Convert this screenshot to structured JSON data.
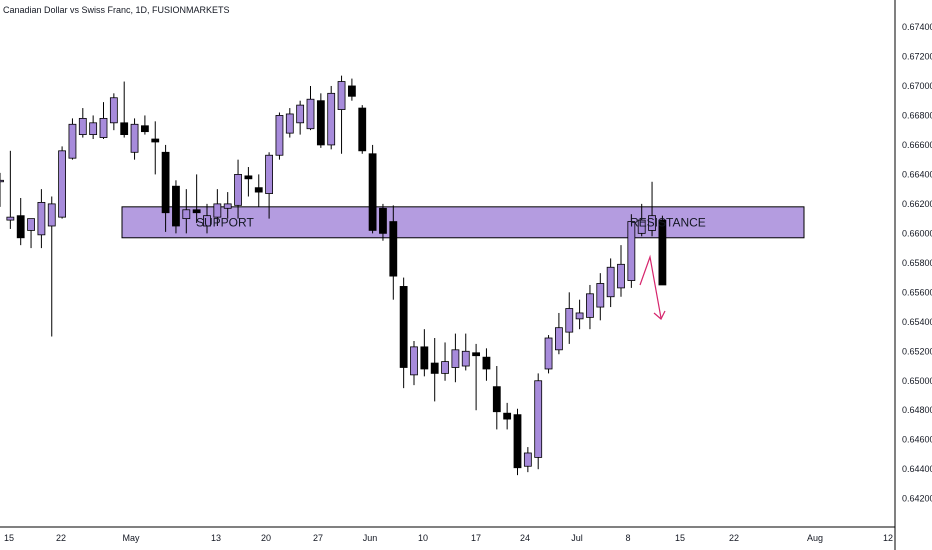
{
  "title": "Canadian Dollar vs Swiss Franc, 1D, FUSIONMARKETS",
  "colors": {
    "bull_fill": "#a78bdb",
    "bear_fill": "#000000",
    "wick": "#000000",
    "zone_fill": "#a78bdb",
    "zone_border": "#000000",
    "arrow": "#d6266d",
    "axis_text": "#131722"
  },
  "chart_data": {
    "type": "candlestick",
    "title": "Canadian Dollar vs Swiss Franc, 1D, FUSIONMARKETS",
    "ylim": [
      0.6406,
      0.6752
    ],
    "y_ticks": [
      "0.67400",
      "0.67200",
      "0.67000",
      "0.66800",
      "0.66600",
      "0.66400",
      "0.66200",
      "0.66000",
      "0.65800",
      "0.65600",
      "0.65400",
      "0.65200",
      "0.65000",
      "0.64800",
      "0.64600",
      "0.64400",
      "0.64200"
    ],
    "x_ticks": [
      "15",
      "22",
      "May",
      "13",
      "20",
      "27",
      "Jun",
      "10",
      "17",
      "24",
      "Jul",
      "8",
      "15",
      "22",
      "Aug",
      "12"
    ],
    "grid": false,
    "candles": [
      {
        "date": "Apr 11",
        "open": 0.6635,
        "high": 0.6641,
        "low": 0.6618,
        "close": 0.6636
      },
      {
        "date": "Apr 12",
        "open": 0.6609,
        "high": 0.6656,
        "low": 0.6603,
        "close": 0.6611
      },
      {
        "date": "Apr 15",
        "open": 0.6612,
        "high": 0.6624,
        "low": 0.6592,
        "close": 0.6597
      },
      {
        "date": "Apr 16",
        "open": 0.6602,
        "high": 0.6609,
        "low": 0.659,
        "close": 0.661
      },
      {
        "date": "Apr 17",
        "open": 0.6599,
        "high": 0.663,
        "low": 0.659,
        "close": 0.6621
      },
      {
        "date": "Apr 18",
        "open": 0.6605,
        "high": 0.6625,
        "low": 0.653,
        "close": 0.662
      },
      {
        "date": "Apr 19",
        "open": 0.6611,
        "high": 0.6659,
        "low": 0.661,
        "close": 0.6656
      },
      {
        "date": "Apr 22",
        "open": 0.6651,
        "high": 0.6678,
        "low": 0.665,
        "close": 0.6674
      },
      {
        "date": "Apr 23",
        "open": 0.6667,
        "high": 0.6685,
        "low": 0.6665,
        "close": 0.6678
      },
      {
        "date": "Apr 24",
        "open": 0.6667,
        "high": 0.668,
        "low": 0.6664,
        "close": 0.6675
      },
      {
        "date": "Apr 25",
        "open": 0.6665,
        "high": 0.6689,
        "low": 0.6664,
        "close": 0.6678
      },
      {
        "date": "Apr 26",
        "open": 0.6675,
        "high": 0.6695,
        "low": 0.667,
        "close": 0.6692
      },
      {
        "date": "Apr 29",
        "open": 0.6675,
        "high": 0.6703,
        "low": 0.6665,
        "close": 0.6667
      },
      {
        "date": "Apr 30",
        "open": 0.6655,
        "high": 0.6678,
        "low": 0.665,
        "close": 0.6674
      },
      {
        "date": "May 1",
        "open": 0.6673,
        "high": 0.668,
        "low": 0.6667,
        "close": 0.6669
      },
      {
        "date": "May 2",
        "open": 0.6664,
        "high": 0.6676,
        "low": 0.664,
        "close": 0.6662
      },
      {
        "date": "May 3",
        "open": 0.6655,
        "high": 0.666,
        "low": 0.6601,
        "close": 0.6614
      },
      {
        "date": "May 6",
        "open": 0.6632,
        "high": 0.6636,
        "low": 0.66,
        "close": 0.6605
      },
      {
        "date": "May 7",
        "open": 0.661,
        "high": 0.663,
        "low": 0.66,
        "close": 0.6616
      },
      {
        "date": "May 8",
        "open": 0.6616,
        "high": 0.664,
        "low": 0.6607,
        "close": 0.6614
      },
      {
        "date": "May 9",
        "open": 0.6605,
        "high": 0.662,
        "low": 0.66,
        "close": 0.6612
      },
      {
        "date": "May 10",
        "open": 0.6611,
        "high": 0.663,
        "low": 0.6605,
        "close": 0.662
      },
      {
        "date": "May 13",
        "open": 0.6617,
        "high": 0.6628,
        "low": 0.661,
        "close": 0.662
      },
      {
        "date": "May 14",
        "open": 0.6619,
        "high": 0.665,
        "low": 0.661,
        "close": 0.664
      },
      {
        "date": "May 15",
        "open": 0.6639,
        "high": 0.6645,
        "low": 0.6625,
        "close": 0.6637
      },
      {
        "date": "May 16",
        "open": 0.6631,
        "high": 0.664,
        "low": 0.6618,
        "close": 0.6628
      },
      {
        "date": "May 17",
        "open": 0.6627,
        "high": 0.6655,
        "low": 0.661,
        "close": 0.6653
      },
      {
        "date": "May 20",
        "open": 0.6653,
        "high": 0.6682,
        "low": 0.665,
        "close": 0.668
      },
      {
        "date": "May 21",
        "open": 0.6668,
        "high": 0.6685,
        "low": 0.6665,
        "close": 0.6681
      },
      {
        "date": "May 22",
        "open": 0.6675,
        "high": 0.669,
        "low": 0.6667,
        "close": 0.6687
      },
      {
        "date": "May 23",
        "open": 0.6671,
        "high": 0.67,
        "low": 0.667,
        "close": 0.6691
      },
      {
        "date": "May 24",
        "open": 0.669,
        "high": 0.6695,
        "low": 0.6658,
        "close": 0.666
      },
      {
        "date": "May 27",
        "open": 0.666,
        "high": 0.67,
        "low": 0.6657,
        "close": 0.6695
      },
      {
        "date": "May 28",
        "open": 0.6684,
        "high": 0.6707,
        "low": 0.6654,
        "close": 0.6703
      },
      {
        "date": "May 29",
        "open": 0.67,
        "high": 0.6705,
        "low": 0.669,
        "close": 0.6693
      },
      {
        "date": "May 30",
        "open": 0.6685,
        "high": 0.6687,
        "low": 0.6654,
        "close": 0.6656
      },
      {
        "date": "May 31",
        "open": 0.6654,
        "high": 0.666,
        "low": 0.66,
        "close": 0.6602
      },
      {
        "date": "Jun 3",
        "open": 0.6617,
        "high": 0.662,
        "low": 0.6595,
        "close": 0.66
      },
      {
        "date": "Jun 4",
        "open": 0.6608,
        "high": 0.6619,
        "low": 0.6555,
        "close": 0.6571
      },
      {
        "date": "Jun 5",
        "open": 0.6564,
        "high": 0.657,
        "low": 0.6495,
        "close": 0.6509
      },
      {
        "date": "Jun 6",
        "open": 0.6504,
        "high": 0.6527,
        "low": 0.6497,
        "close": 0.6523
      },
      {
        "date": "Jun 7",
        "open": 0.6523,
        "high": 0.6535,
        "low": 0.6503,
        "close": 0.6508
      },
      {
        "date": "Jun 10",
        "open": 0.6512,
        "high": 0.6529,
        "low": 0.6486,
        "close": 0.6505
      },
      {
        "date": "Jun 11",
        "open": 0.6505,
        "high": 0.6526,
        "low": 0.65,
        "close": 0.6513
      },
      {
        "date": "Jun 12",
        "open": 0.6509,
        "high": 0.6532,
        "low": 0.6499,
        "close": 0.6521
      },
      {
        "date": "Jun 13",
        "open": 0.651,
        "high": 0.6532,
        "low": 0.6507,
        "close": 0.652
      },
      {
        "date": "Jun 14",
        "open": 0.6519,
        "high": 0.6525,
        "low": 0.648,
        "close": 0.6517
      },
      {
        "date": "Jun 17",
        "open": 0.6516,
        "high": 0.6522,
        "low": 0.65,
        "close": 0.6508
      },
      {
        "date": "Jun 18",
        "open": 0.6496,
        "high": 0.651,
        "low": 0.6467,
        "close": 0.6479
      },
      {
        "date": "Jun 19",
        "open": 0.6478,
        "high": 0.6485,
        "low": 0.6467,
        "close": 0.6474
      },
      {
        "date": "Jun 20",
        "open": 0.6477,
        "high": 0.6481,
        "low": 0.6436,
        "close": 0.6441
      },
      {
        "date": "Jun 21",
        "open": 0.6442,
        "high": 0.6455,
        "low": 0.6438,
        "close": 0.6451
      },
      {
        "date": "Jun 24",
        "open": 0.6448,
        "high": 0.6505,
        "low": 0.644,
        "close": 0.65
      },
      {
        "date": "Jun 25",
        "open": 0.6508,
        "high": 0.6531,
        "low": 0.6505,
        "close": 0.6529
      },
      {
        "date": "Jun 26",
        "open": 0.6521,
        "high": 0.6546,
        "low": 0.6518,
        "close": 0.6536
      },
      {
        "date": "Jun 27",
        "open": 0.6533,
        "high": 0.656,
        "low": 0.6525,
        "close": 0.6549
      },
      {
        "date": "Jun 28",
        "open": 0.6542,
        "high": 0.6555,
        "low": 0.6535,
        "close": 0.6546
      },
      {
        "date": "Jul 1",
        "open": 0.6543,
        "high": 0.6565,
        "low": 0.6535,
        "close": 0.6559
      },
      {
        "date": "Jul 2",
        "open": 0.655,
        "high": 0.6573,
        "low": 0.6541,
        "close": 0.6566
      },
      {
        "date": "Jul 3",
        "open": 0.6557,
        "high": 0.6583,
        "low": 0.655,
        "close": 0.6577
      },
      {
        "date": "Jul 4",
        "open": 0.6563,
        "high": 0.6592,
        "low": 0.6557,
        "close": 0.6579
      },
      {
        "date": "Jul 5",
        "open": 0.6568,
        "high": 0.6613,
        "low": 0.6563,
        "close": 0.6608
      },
      {
        "date": "Jul 8",
        "open": 0.66,
        "high": 0.662,
        "low": 0.6598,
        "close": 0.6609
      },
      {
        "date": "Jul 9",
        "open": 0.6602,
        "high": 0.6635,
        "low": 0.6598,
        "close": 0.6612
      },
      {
        "date": "Jul 10",
        "open": 0.6609,
        "high": 0.6612,
        "low": 0.6565,
        "close": 0.6565
      }
    ],
    "zones": [
      {
        "label": "SUPPORT",
        "low": 0.6597,
        "high": 0.6618
      },
      {
        "label": "RESISTANCE",
        "low": 0.6597,
        "high": 0.6618
      }
    ],
    "annotation": {
      "type": "arrow",
      "direction": "down",
      "color": "#d6266d"
    }
  }
}
